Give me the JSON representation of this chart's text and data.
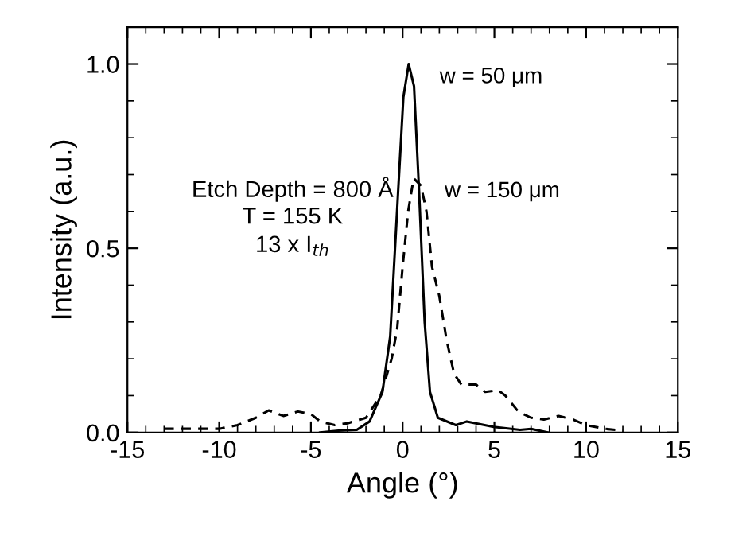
{
  "chart_data": {
    "type": "line",
    "xlabel": "Angle (°)",
    "ylabel": "Intensity (a.u.)",
    "xlim": [
      -15,
      15
    ],
    "xticks": [
      -15,
      -10,
      -5,
      0,
      5,
      10,
      15
    ],
    "ylim": [
      0,
      1.1
    ],
    "yticks": [
      {
        "value": 0,
        "label": "0.0"
      },
      {
        "value": 0.5,
        "label": "0.5"
      },
      {
        "value": 1.0,
        "label": "1.0"
      }
    ],
    "grid": false,
    "legend": false,
    "marker": "none",
    "annotations": [
      "Etch Depth = 800 Å",
      "T = 155 K",
      "13 x I$_{th}$"
    ],
    "series": [
      {
        "name": "w = 50 μm",
        "color": "#000000",
        "line_style": "solid",
        "x": [
          -4.5,
          -3.5,
          -2.5,
          -1.8,
          -1.1,
          -0.68,
          -0.25,
          0.04,
          0.33,
          0.62,
          0.9,
          1.2,
          1.49,
          1.92,
          2.9,
          3.5,
          4.96,
          6.4,
          7.0,
          7.9
        ],
        "values": [
          0,
          0.005,
          0.007,
          0.03,
          0.11,
          0.26,
          0.65,
          0.91,
          1.0,
          0.94,
          0.65,
          0.3,
          0.11,
          0.04,
          0.02,
          0.03,
          0.015,
          0.007,
          0.01,
          0
        ]
      },
      {
        "name": "w = 150 μm",
        "color": "#000000",
        "line_style": "dashed",
        "x": [
          -13,
          -10,
          -9,
          -8,
          -7.3,
          -6.5,
          -5.7,
          -5,
          -4.5,
          -3.7,
          -3,
          -2,
          -1.2,
          -0.6,
          -0.3,
          0,
          0.3,
          0.6,
          1.0,
          1.3,
          1.6,
          2.0,
          2.4,
          2.8,
          3.2,
          4,
          4.5,
          5.2,
          5.6,
          6.3,
          7,
          7.7,
          8.5,
          9.3,
          10,
          11,
          12
        ],
        "values": [
          0.01,
          0.01,
          0.02,
          0.04,
          0.06,
          0.045,
          0.057,
          0.05,
          0.03,
          0.02,
          0.025,
          0.04,
          0.1,
          0.2,
          0.28,
          0.45,
          0.6,
          0.69,
          0.67,
          0.6,
          0.45,
          0.37,
          0.25,
          0.16,
          0.13,
          0.13,
          0.11,
          0.115,
          0.1,
          0.057,
          0.04,
          0.035,
          0.045,
          0.035,
          0.02,
          0.01,
          0.005
        ]
      }
    ]
  }
}
